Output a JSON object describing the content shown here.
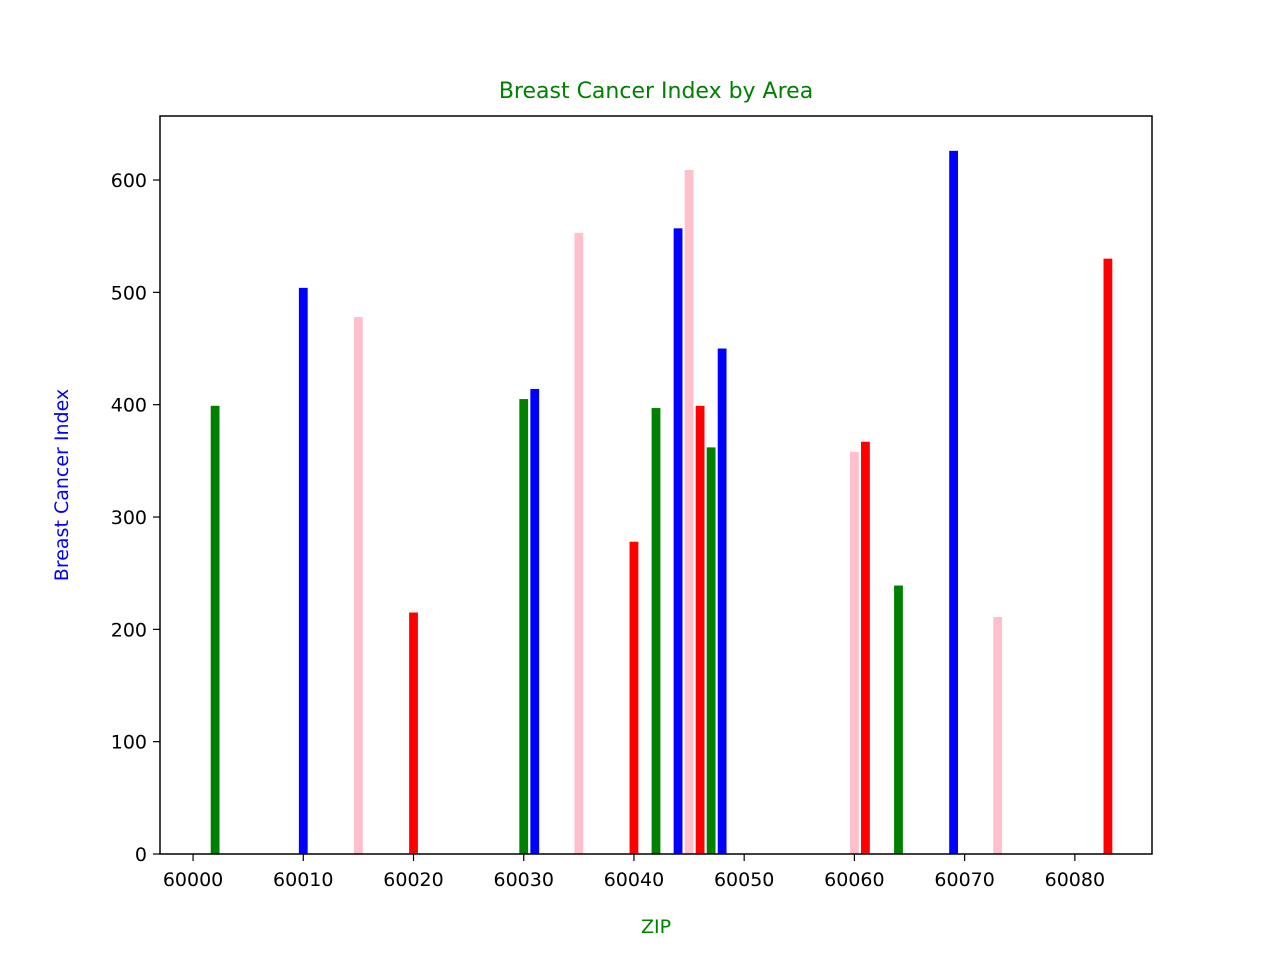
{
  "chart_data": {
    "type": "bar",
    "title": "Breast Cancer Index by Area",
    "xlabel": "ZIP",
    "ylabel": "Breast Cancer Index",
    "xlim": [
      59997,
      60087
    ],
    "ylim": [
      0,
      657
    ],
    "x_ticks": [
      60000,
      60010,
      60020,
      60030,
      60040,
      60050,
      60060,
      60070,
      60080
    ],
    "y_ticks": [
      0,
      100,
      200,
      300,
      400,
      500,
      600
    ],
    "grid": false,
    "colors": {
      "title": "#008000",
      "xlabel": "#008000",
      "ylabel": "#0000ff"
    },
    "bars": [
      {
        "x": 60002,
        "value": 399,
        "color": "#008000"
      },
      {
        "x": 60010,
        "value": 504,
        "color": "#0000ff"
      },
      {
        "x": 60015,
        "value": 478,
        "color": "#ffc0cb"
      },
      {
        "x": 60020,
        "value": 215,
        "color": "#ff0000"
      },
      {
        "x": 60030,
        "value": 405,
        "color": "#008000"
      },
      {
        "x": 60031,
        "value": 414,
        "color": "#0000ff"
      },
      {
        "x": 60035,
        "value": 553,
        "color": "#ffc0cb"
      },
      {
        "x": 60040,
        "value": 278,
        "color": "#ff0000"
      },
      {
        "x": 60042,
        "value": 397,
        "color": "#008000"
      },
      {
        "x": 60044,
        "value": 557,
        "color": "#0000ff"
      },
      {
        "x": 60045,
        "value": 609,
        "color": "#ffc0cb"
      },
      {
        "x": 60046,
        "value": 399,
        "color": "#ff0000"
      },
      {
        "x": 60047,
        "value": 362,
        "color": "#008000"
      },
      {
        "x": 60048,
        "value": 450,
        "color": "#0000ff"
      },
      {
        "x": 60060,
        "value": 358,
        "color": "#ffc0cb"
      },
      {
        "x": 60061,
        "value": 367,
        "color": "#ff0000"
      },
      {
        "x": 60064,
        "value": 239,
        "color": "#008000"
      },
      {
        "x": 60069,
        "value": 626,
        "color": "#0000ff"
      },
      {
        "x": 60073,
        "value": 211,
        "color": "#ffc0cb"
      },
      {
        "x": 60083,
        "value": 530,
        "color": "#ff0000"
      }
    ]
  }
}
